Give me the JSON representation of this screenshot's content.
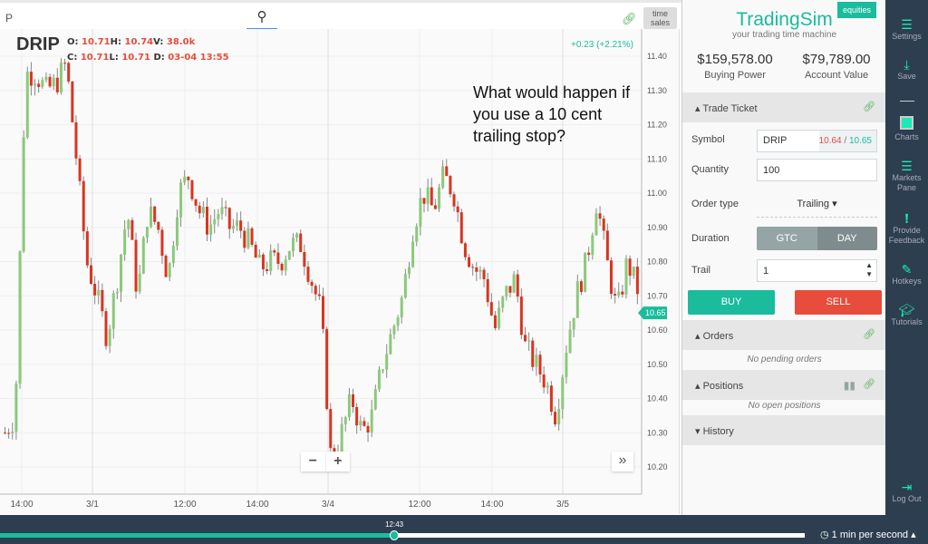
{
  "topbar": {
    "search_value": "P",
    "search_icon": "magnifier-icon",
    "link_icon": "link-icon",
    "time_sales": "time sales"
  },
  "chart": {
    "symbol": "DRIP",
    "ohlc": {
      "o_label": "O:",
      "o": "10.71",
      "h_label": "H:",
      "h": "10.74",
      "v_label": "V:",
      "v": "38.0k",
      "c_label": "C:",
      "c": "10.71",
      "l_label": "L:",
      "l": "10.71",
      "d_label": "D:",
      "d": "03-04 13:55"
    },
    "change": "+0.23 (+2.21%)",
    "annotation": "What would happen if you use a 10 cent trailing stop?",
    "zoom_out": "−",
    "zoom_in": "+",
    "forward": "»",
    "current_price": "10.65"
  },
  "chart_data": {
    "type": "candlestick",
    "x_ticks": [
      "14:00",
      "3/1",
      "12:00",
      "14:00",
      "3/4",
      "12:00",
      "14:00",
      "3/5"
    ],
    "y_ticks": [
      "11.40",
      "11.30",
      "11.20",
      "11.10",
      "11.00",
      "10.90",
      "10.80",
      "10.70",
      "10.60",
      "10.50",
      "10.40",
      "10.30",
      "10.20"
    ],
    "ylim": [
      10.15,
      11.45
    ],
    "up_color": "#8bc97a",
    "down_color": "#d9341f",
    "price_path": [
      10.3,
      10.35,
      11.35,
      11.35,
      11.3,
      11.32,
      11.38,
      11.1,
      10.8,
      10.7,
      10.58,
      10.75,
      10.95,
      10.7,
      10.95,
      10.9,
      10.75,
      11.0,
      11.05,
      10.95,
      10.9,
      10.95,
      10.9,
      10.9,
      10.85,
      10.78,
      10.8,
      10.8,
      10.85,
      10.85,
      10.75,
      10.65,
      10.2,
      10.3,
      10.4,
      10.3,
      10.35,
      10.5,
      10.6,
      10.7,
      10.9,
      11.0,
      10.95,
      11.05,
      11.0,
      10.85,
      10.78,
      10.75,
      10.6,
      10.7,
      10.75,
      10.55,
      10.5,
      10.45,
      10.35,
      10.55,
      10.7,
      10.8,
      10.98,
      10.8,
      10.65,
      10.8,
      10.72
    ]
  },
  "panel": {
    "badge": "equities",
    "brand": "TradingSim",
    "tagline": "your trading time machine",
    "buying_power": "$159,578.00",
    "buying_power_label": "Buying Power",
    "account_value": "$79,789.00",
    "account_value_label": "Account Value",
    "trade_ticket": "Trade Ticket",
    "symbol_label": "Symbol",
    "symbol_value": "DRIP",
    "bid": "10.64",
    "sep": " / ",
    "ask": "10.65",
    "quantity_label": "Quantity",
    "quantity_value": "100",
    "order_type_label": "Order type",
    "order_type_value": "Trailing ▾",
    "duration_label": "Duration",
    "gtc": "GTC",
    "day": "DAY",
    "trail_label": "Trail",
    "trail_value": "1",
    "buy": "BUY",
    "sell": "SELL",
    "orders": "Orders",
    "no_orders": "No pending orders",
    "positions": "Positions",
    "no_positions": "No open positions",
    "history": "History"
  },
  "sidebar": {
    "settings": "Settings",
    "save": "Save",
    "charts": "Charts",
    "markets": "Markets Pane",
    "feedback": "Provide Feedback",
    "hotkeys": "Hotkeys",
    "tutorials": "Tutorials",
    "logout": "Log Out"
  },
  "playback": {
    "time": "12:43",
    "progress": 0.49,
    "speed": "1 min per second ▴"
  }
}
